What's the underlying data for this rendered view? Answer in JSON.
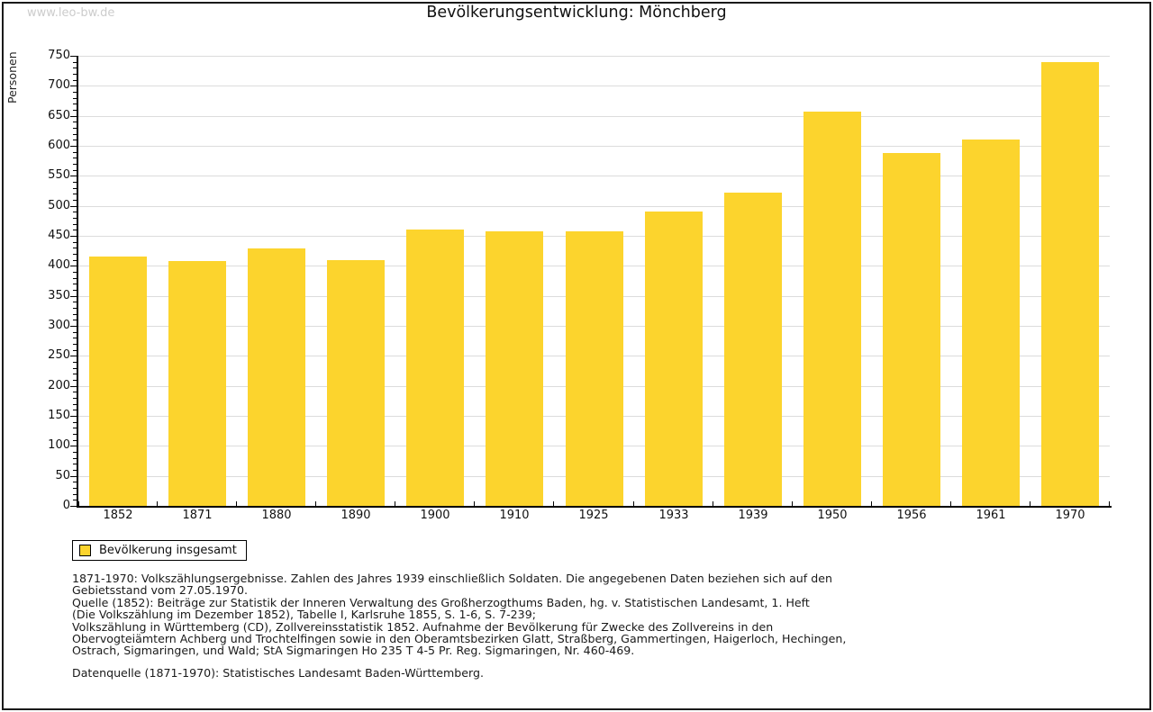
{
  "watermark": "www.leo-bw.de",
  "title": "Bevölkerungsentwicklung: Mönchberg",
  "colors": {
    "bar": "#FCD42D",
    "grid": "#DCDCDC",
    "axis": "#000000",
    "watermark": "#CCCCCC"
  },
  "chart_data": {
    "type": "bar",
    "title": "Bevölkerungsentwicklung: Mönchberg",
    "xlabel": "",
    "ylabel": "Personen",
    "ylim": [
      0,
      750
    ],
    "ytick_step": 50,
    "minor_tick_step": 10,
    "grid": true,
    "legend_position": "bottom-left",
    "categories": [
      "1852",
      "1871",
      "1880",
      "1890",
      "1900",
      "1910",
      "1925",
      "1933",
      "1939",
      "1950",
      "1956",
      "1961",
      "1970"
    ],
    "series": [
      {
        "name": "Bevölkerung insgesamt",
        "values": [
          415,
          408,
          429,
          410,
          461,
          457,
          457,
          491,
          522,
          657,
          588,
          610,
          740
        ]
      }
    ]
  },
  "legend": {
    "label": "Bevölkerung insgesamt"
  },
  "footer": {
    "notes": "1871-1970: Volkszählungsergebnisse. Zahlen des Jahres 1939 einschließlich Soldaten. Die angegebenen Daten beziehen sich auf den\nGebietsstand vom 27.05.1970.\nQuelle (1852): Beiträge zur Statistik der Inneren Verwaltung des Großherzogthums Baden, hg. v. Statistischen Landesamt, 1. Heft\n(Die Volkszählung im Dezember 1852), Tabelle I, Karlsruhe 1855, S. 1-6, S. 7-239;\nVolkszählung in Württemberg (CD), Zollvereinsstatistik 1852. Aufnahme der Bevölkerung für Zwecke des Zollvereins in den\nObervogteiämtern Achberg und Trochtelfingen sowie in den Oberamtsbezirken Glatt, Straßberg, Gammertingen, Haigerloch, Hechingen,\nOstrach, Sigmaringen, und Wald; StA Sigmaringen Ho 235 T 4-5 Pr. Reg. Sigmaringen, Nr. 460-469.",
    "datenquelle": "Datenquelle (1871-1970): Statistisches Landesamt Baden-Württemberg."
  }
}
